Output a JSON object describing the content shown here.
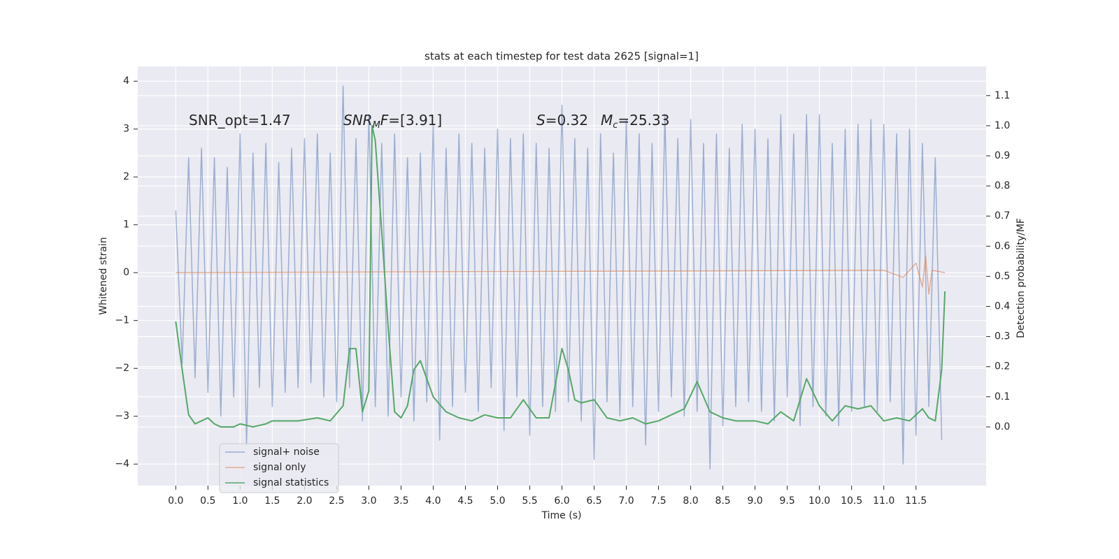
{
  "chart_data": {
    "type": "line",
    "title": "stats at each timestep for test data 2625 [signal=1]",
    "xlabel": "Time (s)",
    "ylabel": "Whitened strain",
    "y2label": "Detection probability/MF",
    "annotations": [
      [
        "SNR_opt=1.47"
      ],
      [
        "SNR",
        "M",
        "F",
        "=[3.91]"
      ],
      [
        "S",
        "=0.32"
      ],
      [
        "M",
        "c",
        "=25.33"
      ]
    ],
    "xlim": [
      -0.59,
      12.59
    ],
    "ylim": [
      -4.45,
      4.31
    ],
    "y2lim": [
      -0.195,
      1.197
    ],
    "xticks": [
      {
        "value": 0,
        "label": "0.0"
      },
      0.5,
      {
        "value": 1,
        "label": "1.0"
      },
      1.5,
      {
        "value": 2,
        "label": "2.0"
      },
      2.5,
      {
        "value": 3,
        "label": "3.0"
      },
      3.5,
      {
        "value": 4,
        "label": "4.0"
      },
      4.5,
      {
        "value": 5,
        "label": "5.0"
      },
      5.5,
      {
        "value": 6,
        "label": "6.0"
      },
      6.5,
      {
        "value": 7,
        "label": "7.0"
      },
      7.5,
      {
        "value": 8,
        "label": "8.0"
      },
      8.5,
      {
        "value": 9,
        "label": "9.0"
      },
      9.5,
      {
        "value": 10,
        "label": "10.0"
      },
      10.5,
      {
        "value": 11,
        "label": "11.0"
      },
      11.5
    ],
    "yticks": [
      {
        "value": -4,
        "label": "−4"
      },
      {
        "value": -3,
        "label": "−3"
      },
      {
        "value": -2,
        "label": "−2"
      },
      {
        "value": -1,
        "label": "−1"
      },
      0,
      1,
      2,
      3,
      4
    ],
    "y2ticks": [
      {
        "value": 0,
        "label": "0.0"
      },
      0.1,
      0.2,
      0.3,
      0.4,
      0.5,
      0.6,
      0.7,
      0.8,
      0.9,
      {
        "value": 1,
        "label": "1.0"
      },
      1.1
    ],
    "grid": true,
    "legend": "lower left",
    "series": [
      {
        "name": "signal+ noise",
        "color": "#4c72b0",
        "alpha": 0.5,
        "x": [
          0,
          0.1,
          0.2,
          0.3,
          0.4,
          0.5,
          0.6,
          0.7,
          0.8,
          0.9,
          1,
          1.1,
          1.2,
          1.3,
          1.4,
          1.5,
          1.6,
          1.7,
          1.8,
          1.9,
          2,
          2.1,
          2.2,
          2.3,
          2.4,
          2.5,
          2.6,
          2.7,
          2.8,
          2.9,
          3,
          3.1,
          3.2,
          3.3,
          3.4,
          3.5,
          3.6,
          3.7,
          3.8,
          3.9,
          4,
          4.1,
          4.2,
          4.3,
          4.4,
          4.5,
          4.6,
          4.7,
          4.8,
          4.9,
          5,
          5.1,
          5.2,
          5.3,
          5.4,
          5.5,
          5.6,
          5.7,
          5.8,
          5.9,
          6,
          6.1,
          6.2,
          6.3,
          6.4,
          6.5,
          6.6,
          6.7,
          6.8,
          6.9,
          7,
          7.1,
          7.2,
          7.3,
          7.4,
          7.5,
          7.6,
          7.7,
          7.8,
          7.9,
          8,
          8.1,
          8.2,
          8.3,
          8.4,
          8.5,
          8.6,
          8.7,
          8.8,
          8.9,
          9,
          9.1,
          9.2,
          9.3,
          9.4,
          9.5,
          9.6,
          9.7,
          9.8,
          9.9,
          10,
          10.1,
          10.2,
          10.3,
          10.4,
          10.5,
          10.6,
          10.7,
          10.8,
          10.9,
          11,
          11.1,
          11.2,
          11.3,
          11.4,
          11.5,
          11.6,
          11.7,
          11.8,
          11.9
        ],
        "values": [
          1.3,
          -1.9,
          2.4,
          -2.2,
          2.6,
          -2.5,
          2.4,
          -3.0,
          2.2,
          -2.6,
          2.9,
          -3.6,
          2.5,
          -2.4,
          2.7,
          -2.8,
          2.3,
          -2.5,
          2.6,
          -2.4,
          2.8,
          -2.3,
          2.9,
          -2.6,
          2.5,
          -2.7,
          3.9,
          -2.4,
          2.8,
          -3.1,
          3.3,
          -2.8,
          2.7,
          -3.0,
          2.9,
          -2.6,
          2.4,
          -3.1,
          2.5,
          -2.7,
          3.1,
          -3.5,
          2.6,
          -2.8,
          2.9,
          -2.5,
          2.7,
          -2.9,
          2.6,
          -2.4,
          3.0,
          -3.3,
          2.8,
          -2.6,
          2.9,
          -3.4,
          2.7,
          -2.8,
          2.6,
          -2.9,
          3.5,
          -2.7,
          2.8,
          -3.1,
          2.6,
          -3.9,
          2.9,
          -2.7,
          2.5,
          -3.0,
          3.2,
          -2.8,
          2.9,
          -3.6,
          2.7,
          -2.9,
          3.3,
          -2.6,
          2.8,
          -3.0,
          3.2,
          -2.9,
          2.7,
          -4.1,
          2.9,
          -3.2,
          2.6,
          -2.8,
          3.1,
          -2.7,
          3.0,
          -2.9,
          2.8,
          -3.1,
          3.3,
          -2.6,
          2.9,
          -3.2,
          3.3,
          -2.8,
          3.3,
          -3.0,
          2.7,
          -3.2,
          3.0,
          -2.9,
          3.1,
          -2.8,
          3.2,
          -2.9,
          3.1,
          -2.7,
          2.9,
          -4.0,
          3.0,
          -3.4,
          2.7,
          -2.8,
          2.4,
          -3.5
        ]
      },
      {
        "name": "signal only",
        "color": "#dd8452",
        "alpha": 0.6,
        "x": [
          0,
          11.0,
          11.3,
          11.5,
          11.6,
          11.65,
          11.7,
          11.75,
          11.95
        ],
        "values": [
          0,
          0.05,
          -0.1,
          0.2,
          -0.3,
          0.35,
          -0.45,
          0.05,
          0
        ]
      },
      {
        "name": "signal statistics",
        "color": "#55a868",
        "alpha": 1,
        "axis": "y2",
        "x": [
          0,
          0.1,
          0.2,
          0.3,
          0.4,
          0.5,
          0.6,
          0.7,
          0.9,
          1.0,
          1.2,
          1.4,
          1.5,
          1.7,
          1.9,
          2.2,
          2.4,
          2.6,
          2.7,
          2.8,
          2.9,
          3.0,
          3.05,
          3.1,
          3.2,
          3.3,
          3.4,
          3.5,
          3.6,
          3.7,
          3.8,
          3.9,
          4.0,
          4.2,
          4.4,
          4.6,
          4.8,
          5.0,
          5.2,
          5.4,
          5.6,
          5.8,
          6.0,
          6.1,
          6.2,
          6.3,
          6.5,
          6.7,
          6.9,
          7.1,
          7.3,
          7.5,
          7.7,
          7.9,
          8.1,
          8.3,
          8.5,
          8.7,
          9.0,
          9.2,
          9.4,
          9.6,
          9.8,
          10.0,
          10.2,
          10.4,
          10.6,
          10.8,
          11.0,
          11.2,
          11.4,
          11.6,
          11.7,
          11.8,
          11.9,
          11.95
        ],
        "values": [
          0.35,
          0.19,
          0.04,
          0.01,
          0.02,
          0.03,
          0.01,
          0.0,
          0.0,
          0.01,
          0.0,
          0.01,
          0.02,
          0.02,
          0.02,
          0.03,
          0.02,
          0.07,
          0.26,
          0.26,
          0.05,
          0.12,
          1.0,
          0.95,
          0.65,
          0.33,
          0.05,
          0.03,
          0.07,
          0.19,
          0.22,
          0.16,
          0.1,
          0.05,
          0.03,
          0.02,
          0.04,
          0.03,
          0.03,
          0.09,
          0.03,
          0.03,
          0.26,
          0.19,
          0.09,
          0.08,
          0.09,
          0.03,
          0.02,
          0.03,
          0.01,
          0.02,
          0.04,
          0.06,
          0.15,
          0.05,
          0.03,
          0.02,
          0.02,
          0.01,
          0.05,
          0.02,
          0.16,
          0.07,
          0.02,
          0.07,
          0.06,
          0.07,
          0.02,
          0.03,
          0.02,
          0.06,
          0.03,
          0.02,
          0.19,
          0.45
        ]
      }
    ]
  }
}
